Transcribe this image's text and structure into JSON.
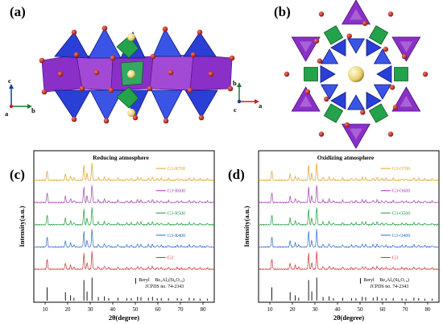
{
  "panel_labels": {
    "a": "(a)",
    "b": "(b)",
    "c": "(c)",
    "d": "(d)"
  },
  "structure_axes": {
    "a_panel": {
      "up": "c",
      "right": "b",
      "out": "a"
    },
    "b_panel": {
      "up": "b",
      "right": "a",
      "out": "c"
    }
  },
  "colors": {
    "si_tetrahedra": "#2a3fd6",
    "be_tetrahedra": "#24a24c",
    "al_octahedra": "#8a2fc7",
    "oxygen": "#b3261e",
    "channel_ion": "#d8d8d8"
  },
  "chart_data": [
    {
      "type": "line",
      "title": "Reducing atmosphere",
      "xlabel": "2θ(degree)",
      "ylabel": "Intensity(a.u.)",
      "xlim": [
        5,
        85
      ],
      "xticks": [
        10,
        20,
        30,
        40,
        50,
        60,
        70,
        80
      ],
      "series": [
        {
          "name": "G3-R700",
          "color": "#e0a020"
        },
        {
          "name": "G3-R600",
          "color": "#a040b0"
        },
        {
          "name": "G3-R500",
          "color": "#1a9a3a"
        },
        {
          "name": "G3-R400",
          "color": "#2a6acc"
        },
        {
          "name": "G3",
          "color": "#cc3030"
        }
      ],
      "reference": {
        "name": "Beryl",
        "formula": "Be₃Al₂(Si₆O₁₈)",
        "card": "JCPDS no. 74-2343",
        "color": "#000000"
      },
      "peaks": [
        {
          "x": 10.9,
          "h": 0.55
        },
        {
          "x": 19.0,
          "h": 0.35
        },
        {
          "x": 21.3,
          "h": 0.22
        },
        {
          "x": 22.8,
          "h": 0.12
        },
        {
          "x": 27.2,
          "h": 0.85
        },
        {
          "x": 28.6,
          "h": 0.38
        },
        {
          "x": 30.8,
          "h": 0.95
        },
        {
          "x": 33.6,
          "h": 0.15
        },
        {
          "x": 36.3,
          "h": 0.18
        },
        {
          "x": 38.2,
          "h": 0.1
        },
        {
          "x": 42.3,
          "h": 0.12
        },
        {
          "x": 46.2,
          "h": 0.1
        },
        {
          "x": 48.2,
          "h": 0.1
        },
        {
          "x": 51.0,
          "h": 0.16
        },
        {
          "x": 52.5,
          "h": 0.14
        },
        {
          "x": 55.8,
          "h": 0.12
        },
        {
          "x": 57.6,
          "h": 0.16
        },
        {
          "x": 59.7,
          "h": 0.1
        },
        {
          "x": 61.5,
          "h": 0.1
        },
        {
          "x": 64.7,
          "h": 0.1
        },
        {
          "x": 68.6,
          "h": 0.1
        },
        {
          "x": 70.4,
          "h": 0.08
        },
        {
          "x": 73.9,
          "h": 0.12
        },
        {
          "x": 76.0,
          "h": 0.1
        },
        {
          "x": 78.7,
          "h": 0.08
        },
        {
          "x": 82.0,
          "h": 0.08
        }
      ]
    },
    {
      "type": "line",
      "title": "Oxidizing atmosphere",
      "xlabel": "2θ(degree)",
      "ylabel": "Intensity(a.u.)",
      "xlim": [
        5,
        85
      ],
      "xticks": [
        10,
        20,
        30,
        40,
        50,
        60,
        70,
        80
      ],
      "series": [
        {
          "name": "G3-O700",
          "color": "#e0a020"
        },
        {
          "name": "G3-O600",
          "color": "#a040b0"
        },
        {
          "name": "G3-O500",
          "color": "#1a9a3a"
        },
        {
          "name": "G3-O400",
          "color": "#2a6acc"
        },
        {
          "name": "G3",
          "color": "#cc3030"
        }
      ],
      "reference": {
        "name": "Beryl",
        "formula": "Be₃Al₂(Si₆O₁₈)",
        "card": "JCPDS no. 74-2343",
        "color": "#000000"
      },
      "peaks": [
        {
          "x": 10.9,
          "h": 0.55
        },
        {
          "x": 19.0,
          "h": 0.35
        },
        {
          "x": 21.3,
          "h": 0.22
        },
        {
          "x": 22.8,
          "h": 0.12
        },
        {
          "x": 27.2,
          "h": 0.85
        },
        {
          "x": 28.6,
          "h": 0.38
        },
        {
          "x": 30.8,
          "h": 0.95
        },
        {
          "x": 33.6,
          "h": 0.15
        },
        {
          "x": 36.3,
          "h": 0.18
        },
        {
          "x": 38.2,
          "h": 0.1
        },
        {
          "x": 42.3,
          "h": 0.12
        },
        {
          "x": 46.2,
          "h": 0.1
        },
        {
          "x": 48.2,
          "h": 0.1
        },
        {
          "x": 51.0,
          "h": 0.16
        },
        {
          "x": 52.5,
          "h": 0.14
        },
        {
          "x": 55.8,
          "h": 0.12
        },
        {
          "x": 57.6,
          "h": 0.16
        },
        {
          "x": 59.7,
          "h": 0.1
        },
        {
          "x": 61.5,
          "h": 0.1
        },
        {
          "x": 64.7,
          "h": 0.1
        },
        {
          "x": 68.6,
          "h": 0.1
        },
        {
          "x": 70.4,
          "h": 0.08
        },
        {
          "x": 73.9,
          "h": 0.12
        },
        {
          "x": 76.0,
          "h": 0.1
        },
        {
          "x": 78.7,
          "h": 0.08
        },
        {
          "x": 82.0,
          "h": 0.08
        }
      ]
    }
  ]
}
